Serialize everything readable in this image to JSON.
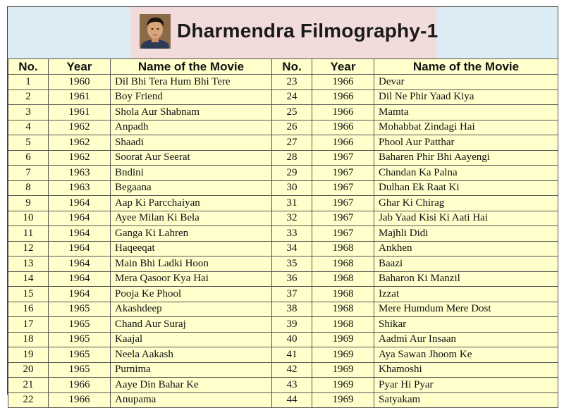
{
  "title": "Dharmendra Filmography-1",
  "colors": {
    "header_band": "#dcecf4",
    "title_box": "#f2dcdb",
    "table_bg": "#ffffcc"
  },
  "headers": [
    "No.",
    "Year",
    "Name of the Movie",
    "No.",
    "Year",
    "Name of the Movie"
  ],
  "left_rows": [
    [
      "1",
      "1960",
      "Dil Bhi Tera Hum Bhi Tere"
    ],
    [
      "2",
      "1961",
      "Boy Friend"
    ],
    [
      "3",
      "1961",
      "Shola Aur Shabnam"
    ],
    [
      "4",
      "1962",
      "Anpadh"
    ],
    [
      "5",
      "1962",
      "Shaadi"
    ],
    [
      "6",
      "1962",
      "Soorat Aur Seerat"
    ],
    [
      "7",
      "1963",
      "Bndini"
    ],
    [
      "8",
      "1963",
      "Begaana"
    ],
    [
      "9",
      "1964",
      "Aap Ki Parcchaiyan"
    ],
    [
      "10",
      "1964",
      "Ayee Milan Ki Bela"
    ],
    [
      "11",
      "1964",
      "Ganga Ki Lahren"
    ],
    [
      "12",
      "1964",
      "Haqeeqat"
    ],
    [
      "13",
      "1964",
      "Main Bhi Ladki Hoon"
    ],
    [
      "14",
      "1964",
      "Mera Qasoor Kya Hai"
    ],
    [
      "15",
      "1964",
      "Pooja Ke Phool"
    ],
    [
      "16",
      "1965",
      "Akashdeep"
    ],
    [
      "17",
      "1965",
      "Chand Aur Suraj"
    ],
    [
      "18",
      "1965",
      "Kaajal"
    ],
    [
      "19",
      "1965",
      "Neela Aakash"
    ],
    [
      "20",
      "1965",
      "Purnima"
    ],
    [
      "21",
      "1966",
      "Aaye Din Bahar Ke"
    ],
    [
      "22",
      "1966",
      "Anupama"
    ]
  ],
  "right_rows": [
    [
      "23",
      "1966",
      "Devar"
    ],
    [
      "24",
      "1966",
      "Dil Ne Phir Yaad Kiya"
    ],
    [
      "25",
      "1966",
      "Mamta"
    ],
    [
      "26",
      "1966",
      "Mohabbat Zindagi Hai"
    ],
    [
      "27",
      "1966",
      "Phool Aur Patthar"
    ],
    [
      "28",
      "1967",
      "Baharen Phir Bhi Aayengi"
    ],
    [
      "29",
      "1967",
      "Chandan Ka Palna"
    ],
    [
      "30",
      "1967",
      "Dulhan Ek Raat Ki"
    ],
    [
      "31",
      "1967",
      "Ghar Ki Chirag"
    ],
    [
      "32",
      "1967",
      "Jab Yaad Kisi Ki Aati Hai"
    ],
    [
      "33",
      "1967",
      "Majhli Didi"
    ],
    [
      "34",
      "1968",
      "Ankhen"
    ],
    [
      "35",
      "1968",
      "Baazi"
    ],
    [
      "36",
      "1968",
      "Baharon Ki Manzil"
    ],
    [
      "37",
      "1968",
      "Izzat"
    ],
    [
      "38",
      "1968",
      "Mere Humdum Mere Dost"
    ],
    [
      "39",
      "1968",
      "Shikar"
    ],
    [
      "40",
      "1969",
      "Aadmi Aur Insaan"
    ],
    [
      "41",
      "1969",
      "Aya Sawan Jhoom Ke"
    ],
    [
      "42",
      "1969",
      "Khamoshi"
    ],
    [
      "43",
      "1969",
      "Pyar Hi Pyar"
    ],
    [
      "44",
      "1969",
      "Satyakam"
    ]
  ]
}
